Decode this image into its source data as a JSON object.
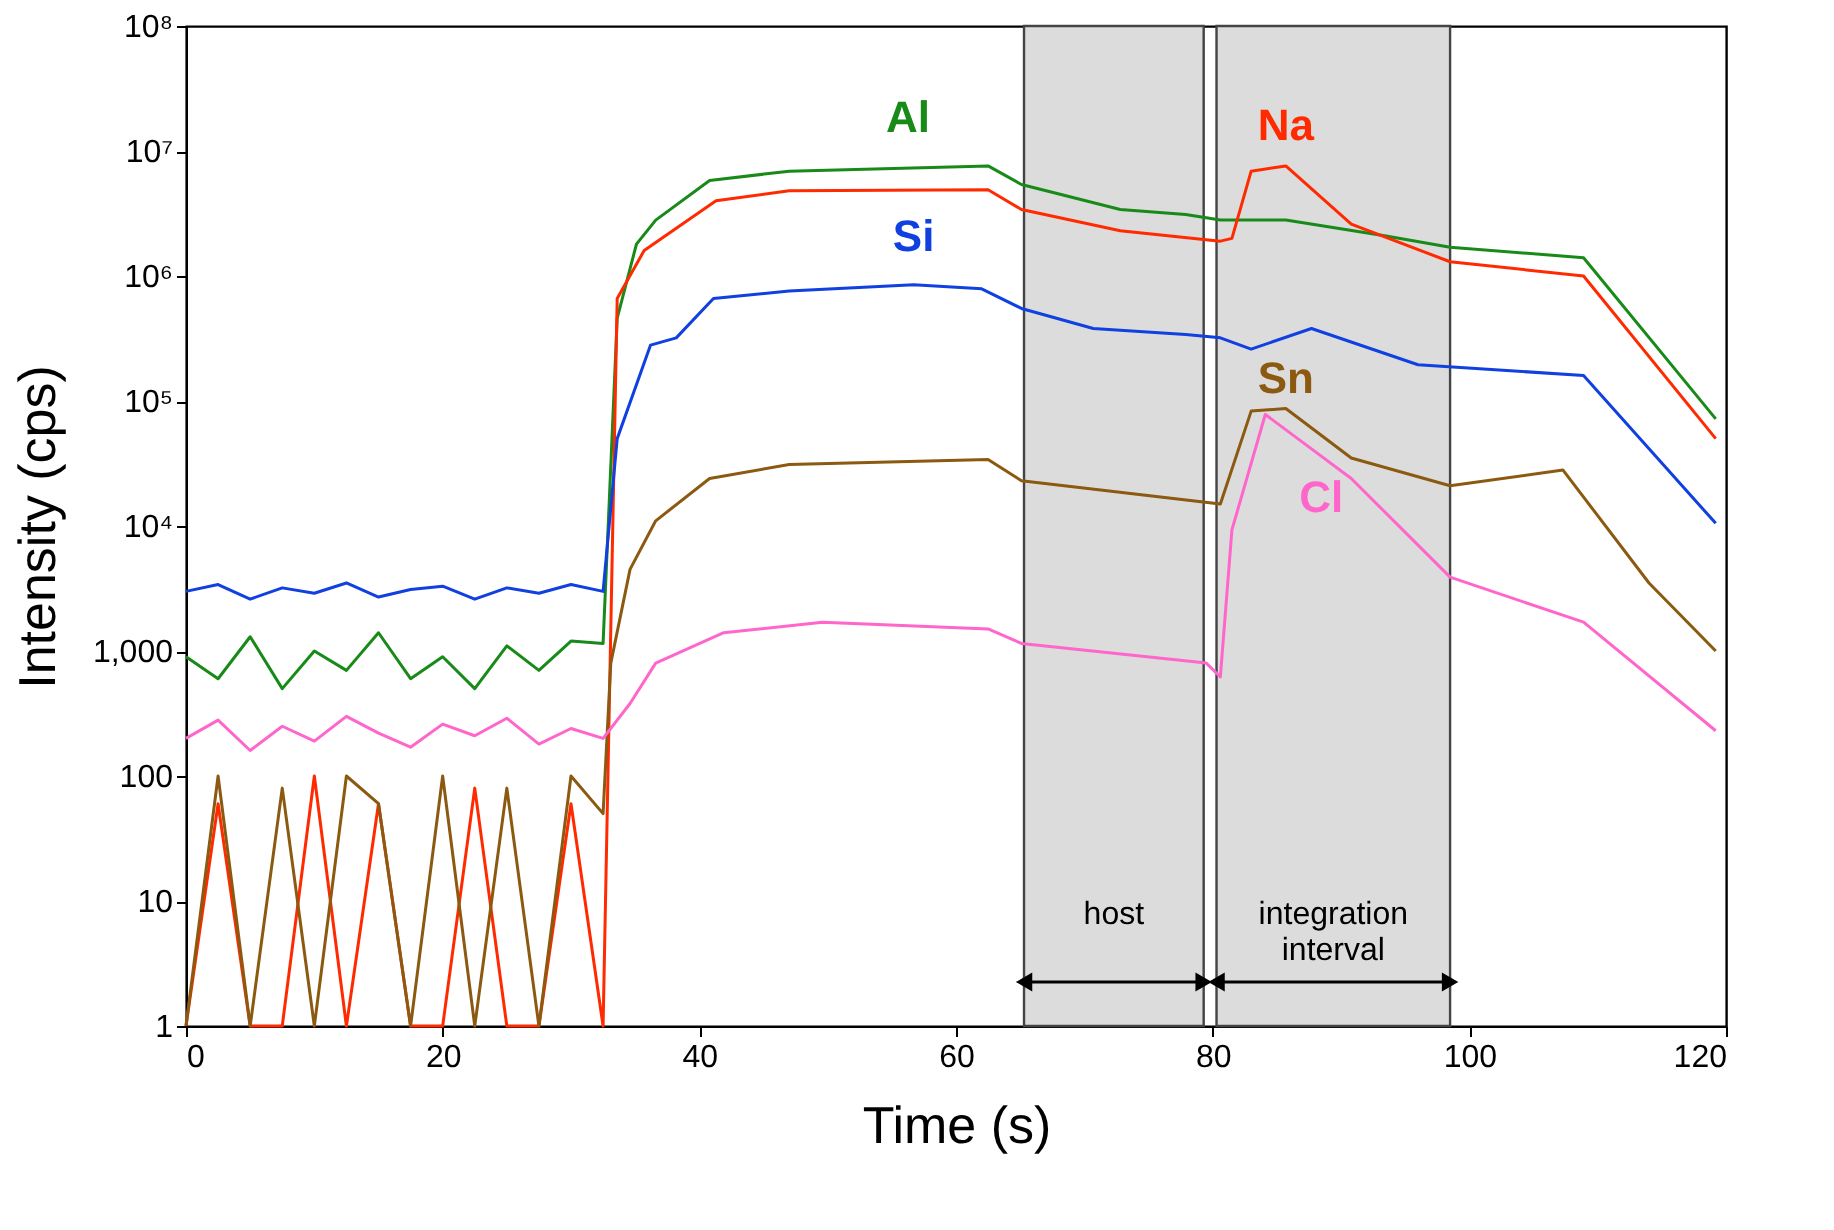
{
  "chart_data": {
    "type": "line",
    "xlabel": "Time (s)",
    "ylabel": "Intensity (cps)",
    "log": "y",
    "xlim": [
      0,
      120
    ],
    "xticks": [
      0,
      20,
      40,
      60,
      80,
      100,
      120
    ],
    "ylim": [
      1,
      100000000
    ],
    "yticks": [
      1,
      10,
      100,
      {
        "value": 1000,
        "label": "1,000"
      },
      {
        "value": 10000,
        "label": "10⁴"
      },
      {
        "value": 100000,
        "label": "10⁵"
      },
      {
        "value": 1000000,
        "label": "10⁶"
      },
      {
        "value": 10000000,
        "label": "10⁷"
      },
      {
        "value": 100000000,
        "label": "10⁸"
      }
    ],
    "grid": false,
    "legend": false,
    "marker": "none",
    "line_style": "solid",
    "bands": [
      {
        "axis": "x",
        "from": 65.3,
        "to": 79.3,
        "label": "host",
        "color": "#dcdcdc"
      },
      {
        "axis": "x",
        "from": 80.3,
        "to": 98.5,
        "label": "integration interval",
        "color": "#dcdcdc"
      }
    ],
    "series": [
      {
        "name": "Al",
        "color": "#188a18",
        "x": [
          0,
          2.5,
          5,
          7.5,
          10,
          12.5,
          15,
          17.5,
          20,
          22.5,
          25,
          27.5,
          30,
          32.5,
          33.6,
          35.1,
          36.6,
          40.8,
          47,
          62.5,
          65.1,
          72.8,
          77.9,
          80.6,
          85.7,
          93.4,
          98.5,
          108.9,
          119.2
        ],
        "values": [
          900,
          600,
          1300,
          500,
          1000,
          700,
          1400,
          600,
          900,
          500,
          1100,
          700,
          1200,
          1150,
          460000,
          1800000,
          2800000,
          5800000,
          6900000,
          7600000,
          5400000,
          3400000,
          3100000,
          2800000,
          2800000,
          2100000,
          1700000,
          1400000,
          72000
        ]
      },
      {
        "name": "Na",
        "color": "#ff2a00",
        "x": [
          0,
          2.5,
          5,
          7.5,
          10,
          12.5,
          15,
          17.5,
          20,
          22.5,
          25,
          27.5,
          30,
          32.5,
          33.6,
          35.7,
          41.3,
          47,
          62.5,
          65.1,
          72.8,
          80.6,
          81.5,
          83,
          85.7,
          90.8,
          98.5,
          108.9,
          119.2
        ],
        "values": [
          1,
          60,
          1,
          1,
          100,
          1,
          60,
          1,
          1,
          80,
          1,
          1,
          60,
          1,
          660000,
          1600000,
          4000000,
          4800000,
          4900000,
          3400000,
          2300000,
          1900000,
          2000000,
          6900000,
          7600000,
          2600000,
          1300000,
          1000000,
          50000
        ]
      },
      {
        "name": "Si",
        "color": "#1040e0",
        "x": [
          0,
          2.5,
          5,
          7.5,
          10,
          12.5,
          15,
          17.5,
          20,
          22.5,
          25,
          27.5,
          30,
          32.5,
          33.6,
          36.2,
          38.2,
          41.1,
          47,
          56.7,
          62,
          65.1,
          70.7,
          77.9,
          80.6,
          83,
          87.7,
          96,
          108.9,
          119.2
        ],
        "values": [
          3000,
          3400,
          2600,
          3200,
          2900,
          3500,
          2700,
          3100,
          3300,
          2600,
          3200,
          2900,
          3400,
          3000,
          50000,
          280000,
          320000,
          660000,
          760000,
          850000,
          790000,
          550000,
          380000,
          340000,
          320000,
          260000,
          380000,
          195000,
          160000,
          10500
        ]
      },
      {
        "name": "Sn",
        "color": "#8b5a10",
        "x": [
          0,
          2.5,
          5,
          7.5,
          10,
          12.5,
          15,
          17.5,
          20,
          22.5,
          25,
          27.5,
          30,
          32.5,
          33.1,
          34.6,
          36.6,
          40.8,
          47,
          62.5,
          65.1,
          80.6,
          83,
          85.7,
          90.8,
          98.5,
          107.3,
          114,
          119.2
        ],
        "values": [
          1,
          100,
          1,
          80,
          1,
          100,
          60,
          1,
          100,
          1,
          80,
          1,
          100,
          50,
          800,
          4500,
          11000,
          24000,
          31000,
          34000,
          23000,
          15000,
          83000,
          87000,
          35000,
          21000,
          28000,
          3500,
          1000
        ]
      },
      {
        "name": "Cl",
        "color": "#ff66cc",
        "x": [
          0,
          2.5,
          5,
          7.5,
          10,
          12.5,
          15,
          17.5,
          20,
          22.5,
          25,
          27.5,
          30,
          32.5,
          34.6,
          36.6,
          41.9,
          49.6,
          62.5,
          65.1,
          79.5,
          80.6,
          81.5,
          84.1,
          90.8,
          98.5,
          108.9,
          119.2
        ],
        "values": [
          200,
          280,
          160,
          250,
          190,
          300,
          220,
          170,
          260,
          210,
          290,
          180,
          240,
          200,
          380,
          800,
          1400,
          1700,
          1500,
          1150,
          800,
          620,
          9300,
          78000,
          24000,
          3900,
          1700,
          230
        ]
      }
    ]
  }
}
